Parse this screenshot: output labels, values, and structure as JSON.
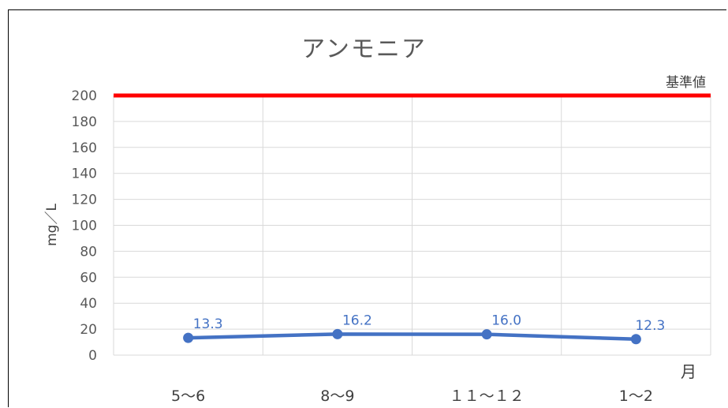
{
  "chart_data": {
    "type": "line",
    "title": "アンモニア",
    "ylabel": "mg／L",
    "xlabel": "月",
    "categories": [
      "5～6",
      "8～9",
      "１１～１２",
      "1～2"
    ],
    "series": [
      {
        "values": [
          13.3,
          16.2,
          16.0,
          12.3
        ],
        "data_labels": [
          "13.3",
          "16.2",
          "16.0",
          "12.3"
        ],
        "color": "#4472C4"
      }
    ],
    "ylim": [
      0,
      200
    ],
    "yticks": [
      "0",
      "20",
      "40",
      "60",
      "80",
      "100",
      "120",
      "140",
      "160",
      "180",
      "200"
    ],
    "grid": true,
    "reference_line": {
      "value": 200,
      "label": "基準値",
      "color": "#FF0000"
    },
    "gridline_color": "#D9D9D9"
  }
}
